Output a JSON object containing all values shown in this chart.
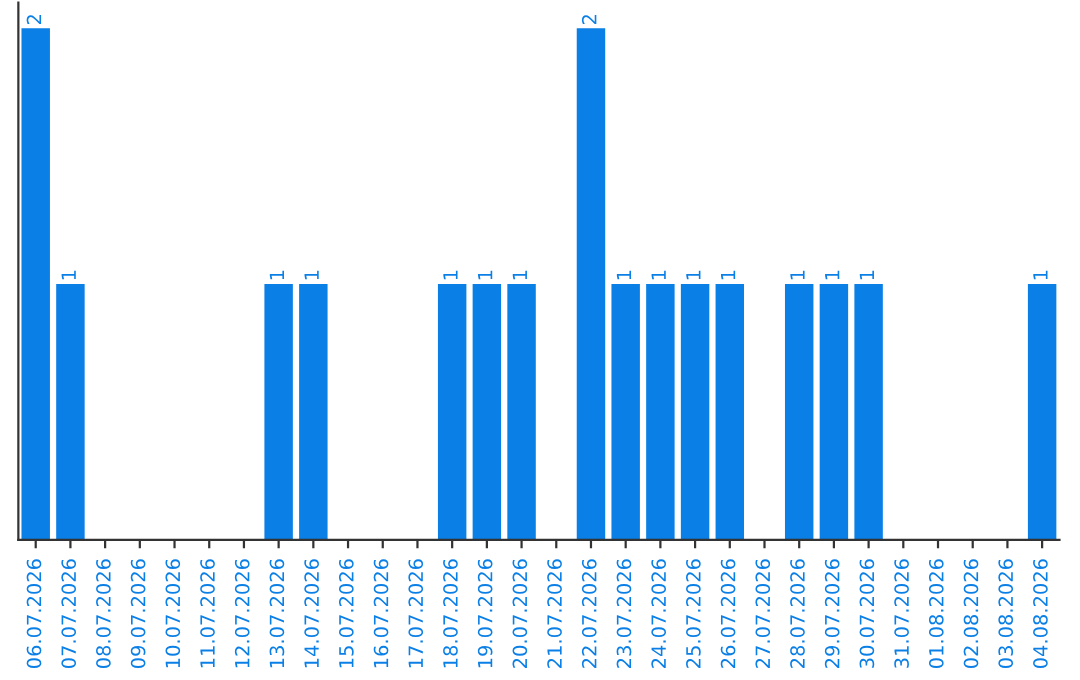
{
  "chart_data": {
    "type": "bar",
    "categories": [
      "06.07.2026",
      "07.07.2026",
      "08.07.2026",
      "09.07.2026",
      "10.07.2026",
      "11.07.2026",
      "12.07.2026",
      "13.07.2026",
      "14.07.2026",
      "15.07.2026",
      "16.07.2026",
      "17.07.2026",
      "18.07.2026",
      "19.07.2026",
      "20.07.2026",
      "21.07.2026",
      "22.07.2026",
      "23.07.2026",
      "24.07.2026",
      "25.07.2026",
      "26.07.2026",
      "27.07.2026",
      "28.07.2026",
      "29.07.2026",
      "30.07.2026",
      "31.07.2026",
      "01.08.2026",
      "02.08.2026",
      "03.08.2026",
      "04.08.2026"
    ],
    "values": [
      2,
      1,
      0,
      0,
      0,
      0,
      0,
      1,
      1,
      0,
      0,
      0,
      1,
      1,
      1,
      0,
      2,
      1,
      1,
      1,
      1,
      0,
      1,
      1,
      1,
      0,
      0,
      0,
      0,
      1
    ],
    "value_labels": [
      "2",
      "1",
      null,
      null,
      null,
      null,
      null,
      "1",
      "1",
      null,
      null,
      null,
      "1",
      "1",
      "1",
      null,
      "2",
      "1",
      "1",
      "1",
      "1",
      null,
      "1",
      "1",
      "1",
      null,
      null,
      null,
      null,
      "1"
    ],
    "color": "#0a7fe6",
    "tick_labels": "x",
    "grid": false,
    "legend": false
  }
}
